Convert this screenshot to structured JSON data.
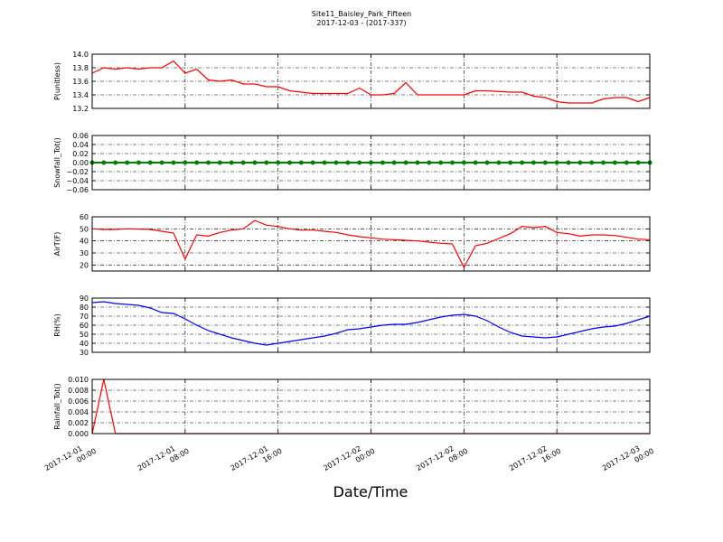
{
  "title": "Site11_Baisley_Park_Fifteen",
  "subtitle": "2017-12-03 - (2017-337)",
  "xlabel": "Date/Time",
  "chart_data": [
    {
      "type": "line",
      "ylabel": "P(unitless)",
      "color": "#ff0000",
      "x": [
        "2017-12-01 00:00",
        "2017-12-01 01:00",
        "2017-12-01 02:00",
        "2017-12-01 03:00",
        "2017-12-01 04:00",
        "2017-12-01 05:00",
        "2017-12-01 06:00",
        "2017-12-01 07:00",
        "2017-12-01 08:00",
        "2017-12-01 09:00",
        "2017-12-01 10:00",
        "2017-12-01 11:00",
        "2017-12-01 12:00",
        "2017-12-01 13:00",
        "2017-12-01 14:00",
        "2017-12-01 15:00",
        "2017-12-01 16:00",
        "2017-12-01 17:00",
        "2017-12-01 18:00",
        "2017-12-01 19:00",
        "2017-12-01 20:00",
        "2017-12-01 21:00",
        "2017-12-01 22:00",
        "2017-12-01 23:00",
        "2017-12-02 00:00",
        "2017-12-02 01:00",
        "2017-12-02 02:00",
        "2017-12-02 03:00",
        "2017-12-02 04:00",
        "2017-12-02 05:00",
        "2017-12-02 06:00",
        "2017-12-02 07:00",
        "2017-12-02 08:00",
        "2017-12-02 09:00",
        "2017-12-02 10:00",
        "2017-12-02 11:00",
        "2017-12-02 12:00",
        "2017-12-02 13:00",
        "2017-12-02 14:00",
        "2017-12-02 15:00",
        "2017-12-02 16:00",
        "2017-12-02 17:00",
        "2017-12-02 18:00",
        "2017-12-02 19:00",
        "2017-12-02 20:00",
        "2017-12-02 21:00",
        "2017-12-02 22:00",
        "2017-12-02 23:00",
        "2017-12-03 00:00"
      ],
      "values": [
        13.72,
        13.8,
        13.78,
        13.8,
        13.78,
        13.8,
        13.8,
        13.9,
        13.72,
        13.78,
        13.62,
        13.6,
        13.62,
        13.56,
        13.56,
        13.52,
        13.52,
        13.46,
        13.44,
        13.42,
        13.42,
        13.42,
        13.42,
        13.5,
        13.4,
        13.4,
        13.42,
        13.58,
        13.4,
        13.4,
        13.4,
        13.4,
        13.4,
        13.46,
        13.46,
        13.45,
        13.44,
        13.44,
        13.38,
        13.36,
        13.3,
        13.28,
        13.28,
        13.28,
        13.34,
        13.36,
        13.36,
        13.3,
        13.36
      ],
      "xlim": [
        "2017-12-01 00:00",
        "2017-12-03 00:00"
      ],
      "xticks": [
        "2017-12-01 00:00",
        "2017-12-01 08:00",
        "2017-12-01 16:00",
        "2017-12-02 00:00",
        "2017-12-02 08:00",
        "2017-12-02 16:00",
        "2017-12-03 00:00"
      ],
      "ylim": [
        13.2,
        14.0
      ],
      "yticks": [
        13.2,
        13.4,
        13.6,
        13.8,
        {
          "value": 14.0,
          "label": "14.0"
        }
      ],
      "grid": true
    },
    {
      "type": "line",
      "ylabel": "Snowfall_Tot()",
      "color": "#008000",
      "markers": true,
      "x": [
        "2017-12-01 00:00",
        "2017-12-01 01:00",
        "2017-12-01 02:00",
        "2017-12-01 03:00",
        "2017-12-01 04:00",
        "2017-12-01 05:00",
        "2017-12-01 06:00",
        "2017-12-01 07:00",
        "2017-12-01 08:00",
        "2017-12-01 09:00",
        "2017-12-01 10:00",
        "2017-12-01 11:00",
        "2017-12-01 12:00",
        "2017-12-01 13:00",
        "2017-12-01 14:00",
        "2017-12-01 15:00",
        "2017-12-01 16:00",
        "2017-12-01 17:00",
        "2017-12-01 18:00",
        "2017-12-01 19:00",
        "2017-12-01 20:00",
        "2017-12-01 21:00",
        "2017-12-01 22:00",
        "2017-12-01 23:00",
        "2017-12-02 00:00",
        "2017-12-02 01:00",
        "2017-12-02 02:00",
        "2017-12-02 03:00",
        "2017-12-02 04:00",
        "2017-12-02 05:00",
        "2017-12-02 06:00",
        "2017-12-02 07:00",
        "2017-12-02 08:00",
        "2017-12-02 09:00",
        "2017-12-02 10:00",
        "2017-12-02 11:00",
        "2017-12-02 12:00",
        "2017-12-02 13:00",
        "2017-12-02 14:00",
        "2017-12-02 15:00",
        "2017-12-02 16:00",
        "2017-12-02 17:00",
        "2017-12-02 18:00",
        "2017-12-02 19:00",
        "2017-12-02 20:00",
        "2017-12-02 21:00",
        "2017-12-02 22:00",
        "2017-12-02 23:00",
        "2017-12-03 00:00"
      ],
      "values": [
        0,
        0,
        0,
        0,
        0,
        0,
        0,
        0,
        0,
        0,
        0,
        0,
        0,
        0,
        0,
        0,
        0,
        0,
        0,
        0,
        0,
        0,
        0,
        0,
        0,
        0,
        0,
        0,
        0,
        0,
        0,
        0,
        0,
        0,
        0,
        0,
        0,
        0,
        0,
        0,
        0,
        0,
        0,
        0,
        0,
        0,
        0,
        0,
        0
      ],
      "xlim": [
        "2017-12-01 00:00",
        "2017-12-03 00:00"
      ],
      "xticks": [
        "2017-12-01 00:00",
        "2017-12-01 08:00",
        "2017-12-01 16:00",
        "2017-12-02 00:00",
        "2017-12-02 08:00",
        "2017-12-02 16:00",
        "2017-12-03 00:00"
      ],
      "ylim": [
        -0.06,
        0.06
      ],
      "yticks": [
        {
          "value": -0.06,
          "label": "−0.06"
        },
        {
          "value": -0.04,
          "label": "−0.04"
        },
        {
          "value": -0.02,
          "label": "−0.02"
        },
        {
          "value": 0,
          "label": "0.00"
        },
        0.02,
        0.04,
        0.06
      ],
      "grid": true
    },
    {
      "type": "line",
      "ylabel": "AirT(F)",
      "color": "#ff0000",
      "x": [
        "2017-12-01 00:00",
        "2017-12-01 01:00",
        "2017-12-01 02:00",
        "2017-12-01 03:00",
        "2017-12-01 04:00",
        "2017-12-01 05:00",
        "2017-12-01 06:00",
        "2017-12-01 07:00",
        "2017-12-01 08:00",
        "2017-12-01 09:00",
        "2017-12-01 10:00",
        "2017-12-01 11:00",
        "2017-12-01 12:00",
        "2017-12-01 13:00",
        "2017-12-01 14:00",
        "2017-12-01 15:00",
        "2017-12-01 16:00",
        "2017-12-01 17:00",
        "2017-12-01 18:00",
        "2017-12-01 19:00",
        "2017-12-01 20:00",
        "2017-12-01 21:00",
        "2017-12-01 22:00",
        "2017-12-01 23:00",
        "2017-12-02 00:00",
        "2017-12-02 01:00",
        "2017-12-02 02:00",
        "2017-12-02 03:00",
        "2017-12-02 04:00",
        "2017-12-02 05:00",
        "2017-12-02 06:00",
        "2017-12-02 07:00",
        "2017-12-02 08:00",
        "2017-12-02 09:00",
        "2017-12-02 10:00",
        "2017-12-02 11:00",
        "2017-12-02 12:00",
        "2017-12-02 13:00",
        "2017-12-02 14:00",
        "2017-12-02 15:00",
        "2017-12-02 16:00",
        "2017-12-02 17:00",
        "2017-12-02 18:00",
        "2017-12-02 19:00",
        "2017-12-02 20:00",
        "2017-12-02 21:00",
        "2017-12-02 22:00",
        "2017-12-02 23:00",
        "2017-12-03 00:00"
      ],
      "values": [
        50,
        49.5,
        49.5,
        50,
        49.8,
        49.5,
        48,
        46.5,
        25,
        45,
        44,
        47,
        49,
        50,
        57,
        53,
        52,
        50,
        49,
        49,
        48,
        47,
        45,
        43.5,
        42.5,
        41.5,
        41,
        40.5,
        40,
        39,
        38,
        37.5,
        18,
        36,
        38,
        42,
        46,
        52,
        51,
        52,
        47,
        46,
        44,
        45,
        45,
        44.5,
        43,
        41.5,
        41
      ],
      "xlim": [
        "2017-12-01 00:00",
        "2017-12-03 00:00"
      ],
      "xticks": [
        "2017-12-01 00:00",
        "2017-12-01 08:00",
        "2017-12-01 16:00",
        "2017-12-02 00:00",
        "2017-12-02 08:00",
        "2017-12-02 16:00",
        "2017-12-03 00:00"
      ],
      "ylim": [
        15,
        60
      ],
      "yticks": [
        20,
        30,
        40,
        50,
        60
      ],
      "grid": true
    },
    {
      "type": "line",
      "ylabel": "RH(%)",
      "color": "#0000ff",
      "x": [
        "2017-12-01 00:00",
        "2017-12-01 01:00",
        "2017-12-01 02:00",
        "2017-12-01 03:00",
        "2017-12-01 04:00",
        "2017-12-01 05:00",
        "2017-12-01 06:00",
        "2017-12-01 07:00",
        "2017-12-01 08:00",
        "2017-12-01 09:00",
        "2017-12-01 10:00",
        "2017-12-01 11:00",
        "2017-12-01 12:00",
        "2017-12-01 13:00",
        "2017-12-01 14:00",
        "2017-12-01 15:00",
        "2017-12-01 16:00",
        "2017-12-01 17:00",
        "2017-12-01 18:00",
        "2017-12-01 19:00",
        "2017-12-01 20:00",
        "2017-12-01 21:00",
        "2017-12-01 22:00",
        "2017-12-01 23:00",
        "2017-12-02 00:00",
        "2017-12-02 01:00",
        "2017-12-02 02:00",
        "2017-12-02 03:00",
        "2017-12-02 04:00",
        "2017-12-02 05:00",
        "2017-12-02 06:00",
        "2017-12-02 07:00",
        "2017-12-02 08:00",
        "2017-12-02 09:00",
        "2017-12-02 10:00",
        "2017-12-02 11:00",
        "2017-12-02 12:00",
        "2017-12-02 13:00",
        "2017-12-02 14:00",
        "2017-12-02 15:00",
        "2017-12-02 16:00",
        "2017-12-02 17:00",
        "2017-12-02 18:00",
        "2017-12-02 19:00",
        "2017-12-02 20:00",
        "2017-12-02 21:00",
        "2017-12-02 22:00",
        "2017-12-02 23:00",
        "2017-12-03 00:00"
      ],
      "values": [
        85,
        86,
        84,
        83,
        82,
        79,
        74,
        73,
        67,
        60,
        54,
        50,
        46,
        43,
        40,
        38,
        40,
        42,
        44,
        46,
        48,
        51,
        55,
        56,
        58,
        60,
        61,
        61,
        63,
        66,
        69,
        71,
        72,
        70,
        65,
        58,
        52,
        48,
        47,
        46,
        47,
        50,
        53,
        56,
        58,
        59,
        62,
        66,
        70
      ],
      "xlim": [
        "2017-12-01 00:00",
        "2017-12-03 00:00"
      ],
      "xticks": [
        "2017-12-01 00:00",
        "2017-12-01 08:00",
        "2017-12-01 16:00",
        "2017-12-02 00:00",
        "2017-12-02 08:00",
        "2017-12-02 16:00",
        "2017-12-03 00:00"
      ],
      "ylim": [
        30,
        90
      ],
      "yticks": [
        30,
        40,
        50,
        60,
        70,
        80,
        90
      ],
      "grid": true
    },
    {
      "type": "line",
      "ylabel": "Rainfall_Tot()",
      "color": "#ff0000",
      "x": [
        "2017-12-01 00:00",
        "2017-12-01 01:00",
        "2017-12-01 02:00",
        "2017-12-01 03:00",
        "2017-12-01 04:00",
        "2017-12-01 05:00",
        "2017-12-01 06:00",
        "2017-12-01 07:00",
        "2017-12-01 08:00",
        "2017-12-01 09:00",
        "2017-12-01 10:00",
        "2017-12-01 11:00",
        "2017-12-01 12:00",
        "2017-12-01 13:00",
        "2017-12-01 14:00",
        "2017-12-01 15:00",
        "2017-12-01 16:00",
        "2017-12-01 17:00",
        "2017-12-01 18:00",
        "2017-12-01 19:00",
        "2017-12-01 20:00",
        "2017-12-01 21:00",
        "2017-12-01 22:00",
        "2017-12-01 23:00",
        "2017-12-02 00:00",
        "2017-12-02 01:00",
        "2017-12-02 02:00",
        "2017-12-02 03:00",
        "2017-12-02 04:00",
        "2017-12-02 05:00",
        "2017-12-02 06:00",
        "2017-12-02 07:00",
        "2017-12-02 08:00",
        "2017-12-02 09:00",
        "2017-12-02 10:00",
        "2017-12-02 11:00",
        "2017-12-02 12:00",
        "2017-12-02 13:00",
        "2017-12-02 14:00",
        "2017-12-02 15:00",
        "2017-12-02 16:00",
        "2017-12-02 17:00",
        "2017-12-02 18:00",
        "2017-12-02 19:00",
        "2017-12-02 20:00",
        "2017-12-02 21:00",
        "2017-12-02 22:00",
        "2017-12-02 23:00",
        "2017-12-03 00:00"
      ],
      "values": [
        0,
        0.01,
        0,
        0,
        0,
        0,
        0,
        0,
        0,
        0,
        0,
        0,
        0,
        0,
        0,
        0,
        0,
        0,
        0,
        0,
        0,
        0,
        0,
        0,
        0,
        0,
        0,
        0,
        0,
        0,
        0,
        0,
        0,
        0,
        0,
        0,
        0,
        0,
        0,
        0,
        0,
        0,
        0,
        0,
        0,
        0,
        0,
        0,
        0
      ],
      "xlim": [
        "2017-12-01 00:00",
        "2017-12-03 00:00"
      ],
      "xticks": [
        "2017-12-01 00:00",
        "2017-12-01 08:00",
        "2017-12-01 16:00",
        "2017-12-02 00:00",
        "2017-12-02 08:00",
        "2017-12-02 16:00",
        "2017-12-03 00:00"
      ],
      "ylim": [
        0,
        0.01
      ],
      "yticks": [
        {
          "value": 0,
          "label": "0.000"
        },
        {
          "value": 0.002,
          "label": "0.002"
        },
        {
          "value": 0.004,
          "label": "0.004"
        },
        {
          "value": 0.006,
          "label": "0.006"
        },
        {
          "value": 0.008,
          "label": "0.008"
        },
        {
          "value": 0.01,
          "label": "0.010"
        }
      ],
      "grid": true,
      "show_xticklabels": true
    }
  ]
}
